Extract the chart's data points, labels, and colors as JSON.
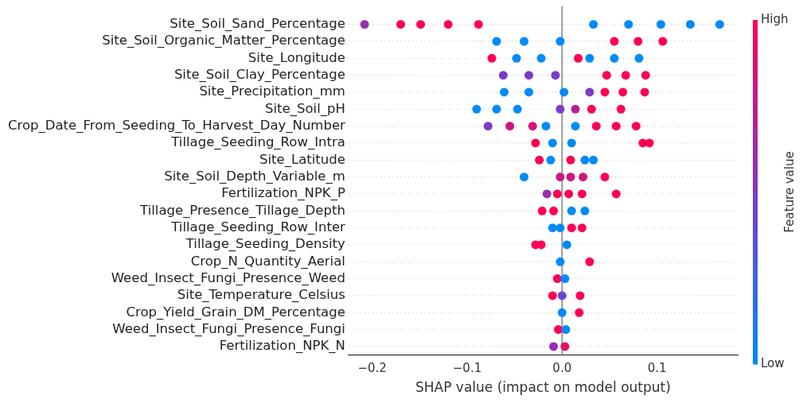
{
  "chart_data": {
    "type": "scatter",
    "orientation": "horizontal",
    "xlabel": "SHAP value (impact on model output)",
    "clabel": "Feature value",
    "categories": [
      "Site_Soil_Sand_Percentage",
      "Site_Soil_Organic_Matter_Percentage",
      "Site_Longitude",
      "Site_Soil_Clay_Percentage",
      "Site_Precipitation_mm",
      "Site_Soil_pH",
      "Crop_Date_From_Seeding_To_Harvest_Day_Number",
      "Tillage_Seeding_Row_Intra",
      "Site_Latitude",
      "Site_Soil_Depth_Variable_m",
      "Fertilization_NPK_P",
      "Tillage_Presence_Tillage_Depth",
      "Tillage_Seeding_Row_Inter",
      "Tillage_Seeding_Density",
      "Crop_N_Quantity_Aerial",
      "Weed_Insect_Fungi_Presence_Weed",
      "Site_Temperature_Celsius",
      "Crop_Yield_Grain_DM_Percentage",
      "Weed_Insect_Fungi_Presence_Fungi",
      "Fertilization_NPK_N"
    ],
    "series": [
      {
        "type": "scatter",
        "x": [
          "Site_Soil_Sand_Percentage",
          "Site_Soil_Sand_Percentage",
          "Site_Soil_Sand_Percentage",
          "Site_Soil_Sand_Percentage",
          "Site_Soil_Sand_Percentage",
          "Site_Soil_Sand_Percentage",
          "Site_Soil_Sand_Percentage",
          "Site_Soil_Sand_Percentage",
          "Site_Soil_Sand_Percentage",
          "Site_Soil_Sand_Percentage",
          "Site_Soil_Organic_Matter_Percentage",
          "Site_Soil_Organic_Matter_Percentage",
          "Site_Soil_Organic_Matter_Percentage",
          "Site_Soil_Organic_Matter_Percentage",
          "Site_Soil_Organic_Matter_Percentage",
          "Site_Soil_Organic_Matter_Percentage",
          "Site_Longitude",
          "Site_Longitude",
          "Site_Longitude",
          "Site_Longitude",
          "Site_Longitude",
          "Site_Longitude",
          "Site_Longitude",
          "Site_Soil_Clay_Percentage",
          "Site_Soil_Clay_Percentage",
          "Site_Soil_Clay_Percentage",
          "Site_Soil_Clay_Percentage",
          "Site_Soil_Clay_Percentage",
          "Site_Soil_Clay_Percentage",
          "Site_Precipitation_mm",
          "Site_Precipitation_mm",
          "Site_Precipitation_mm",
          "Site_Precipitation_mm",
          "Site_Precipitation_mm",
          "Site_Precipitation_mm",
          "Site_Precipitation_mm",
          "Site_Soil_pH",
          "Site_Soil_pH",
          "Site_Soil_pH",
          "Site_Soil_pH",
          "Site_Soil_pH",
          "Site_Soil_pH",
          "Site_Soil_pH",
          "Crop_Date_From_Seeding_To_Harvest_Day_Number",
          "Crop_Date_From_Seeding_To_Harvest_Day_Number",
          "Crop_Date_From_Seeding_To_Harvest_Day_Number",
          "Crop_Date_From_Seeding_To_Harvest_Day_Number",
          "Crop_Date_From_Seeding_To_Harvest_Day_Number",
          "Crop_Date_From_Seeding_To_Harvest_Day_Number",
          "Crop_Date_From_Seeding_To_Harvest_Day_Number",
          "Crop_Date_From_Seeding_To_Harvest_Day_Number",
          "Tillage_Seeding_Row_Intra",
          "Tillage_Seeding_Row_Intra",
          "Tillage_Seeding_Row_Intra",
          "Tillage_Seeding_Row_Intra",
          "Tillage_Seeding_Row_Intra",
          "Site_Latitude",
          "Site_Latitude",
          "Site_Latitude",
          "Site_Latitude",
          "Site_Latitude",
          "Site_Soil_Depth_Variable_m",
          "Site_Soil_Depth_Variable_m",
          "Site_Soil_Depth_Variable_m",
          "Site_Soil_Depth_Variable_m",
          "Site_Soil_Depth_Variable_m",
          "Fertilization_NPK_P",
          "Fertilization_NPK_P",
          "Fertilization_NPK_P",
          "Fertilization_NPK_P",
          "Fertilization_NPK_P",
          "Tillage_Presence_Tillage_Depth",
          "Tillage_Presence_Tillage_Depth",
          "Tillage_Presence_Tillage_Depth",
          "Tillage_Presence_Tillage_Depth",
          "Tillage_Seeding_Row_Inter",
          "Tillage_Seeding_Row_Inter",
          "Tillage_Seeding_Row_Inter",
          "Tillage_Seeding_Row_Inter",
          "Tillage_Seeding_Density",
          "Tillage_Seeding_Density",
          "Tillage_Seeding_Density",
          "Crop_N_Quantity_Aerial",
          "Crop_N_Quantity_Aerial",
          "Weed_Insect_Fungi_Presence_Weed",
          "Weed_Insect_Fungi_Presence_Weed",
          "Site_Temperature_Celsius",
          "Site_Temperature_Celsius",
          "Site_Temperature_Celsius",
          "Crop_Yield_Grain_DM_Percentage",
          "Crop_Yield_Grain_DM_Percentage",
          "Weed_Insect_Fungi_Presence_Fungi",
          "Weed_Insect_Fungi_Presence_Fungi",
          "Fertilization_NPK_N",
          "Fertilization_NPK_N"
        ],
        "values": [
          -0.208,
          -0.17,
          -0.149,
          -0.12,
          -0.088,
          0.033,
          0.07,
          0.104,
          0.135,
          0.166,
          -0.069,
          -0.04,
          -0.002,
          0.055,
          0.08,
          0.106,
          -0.074,
          -0.048,
          -0.022,
          0.017,
          0.029,
          0.055,
          0.081,
          -0.062,
          -0.035,
          -0.007,
          0.047,
          0.067,
          0.088,
          -0.061,
          -0.035,
          0.002,
          0.029,
          0.045,
          0.064,
          0.087,
          -0.09,
          -0.069,
          -0.047,
          -0.002,
          0.014,
          0.031,
          0.062,
          -0.078,
          -0.055,
          -0.031,
          -0.017,
          0.014,
          0.036,
          0.057,
          0.078,
          -0.028,
          -0.01,
          0.01,
          0.085,
          0.092,
          -0.024,
          -0.012,
          0.009,
          0.024,
          0.033,
          -0.04,
          -0.002,
          0.009,
          0.022,
          0.045,
          -0.016,
          -0.005,
          0.007,
          0.021,
          0.057,
          -0.021,
          -0.009,
          0.01,
          0.024,
          -0.01,
          -0.002,
          0.01,
          0.021,
          -0.028,
          -0.022,
          0.005,
          -0.002,
          0.029,
          -0.005,
          0.003,
          -0.01,
          0,
          0.019,
          0,
          0.018,
          -0.004,
          0.004,
          -0.009,
          0.003
        ],
        "cvalues": [
          0.6,
          1,
          1,
          1,
          1,
          0,
          0,
          0,
          0,
          0,
          0,
          0,
          0,
          1,
          1,
          1,
          1,
          0,
          0,
          1,
          0,
          0,
          0,
          0.5,
          0.5,
          0.5,
          1,
          1,
          1,
          0,
          0,
          0,
          0.5,
          1,
          1,
          1,
          0,
          0,
          0,
          0.5,
          0.7,
          1,
          1,
          0.5,
          0.8,
          0.85,
          0,
          0,
          1,
          1,
          1,
          1,
          0,
          0,
          1,
          1,
          1,
          0,
          1,
          0,
          0,
          0,
          0.8,
          0.8,
          0.8,
          1,
          0.6,
          1,
          1,
          1,
          1,
          1,
          1,
          0,
          0,
          0,
          0,
          1,
          1,
          1,
          1,
          0,
          0,
          1,
          1,
          0,
          1,
          0.4,
          1,
          0,
          1,
          1,
          0,
          0.6,
          0.9
        ]
      }
    ],
    "xlim": [
      -0.225,
      0.185
    ],
    "xticks": [
      {
        "value": -0.2,
        "label": "−0.2"
      },
      {
        "value": -0.1,
        "label": "−0.1"
      },
      {
        "value": 0,
        "label": "0.0"
      },
      {
        "value": 0.1,
        "label": "0.1"
      }
    ],
    "clim": [
      0,
      1
    ],
    "cticks": [
      {
        "value": 0,
        "label": "Low"
      },
      {
        "value": 1,
        "label": "High"
      }
    ],
    "ref_lines": [
      {
        "axis": "x",
        "value": 0,
        "color": "#999999"
      }
    ],
    "grid": "y",
    "marker": "circle"
  }
}
